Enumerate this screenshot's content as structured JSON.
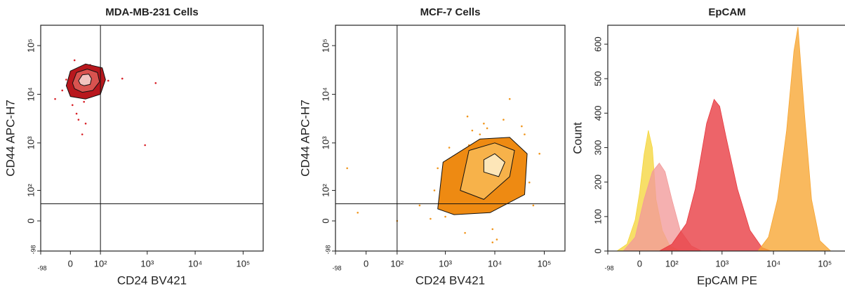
{
  "chart_data": [
    {
      "type": "scatter",
      "title": "MDA-MB-231 Cells",
      "x_label": "CD24 BV421",
      "y_label": "CD44 APC-H7",
      "xscale": "biexponential",
      "yscale": "biexponential",
      "xlim": [
        -98,
        262144
      ],
      "ylim": [
        -98,
        262144
      ],
      "xticks": [
        -98,
        0,
        {
          "value": 100,
          "label": "10²"
        },
        {
          "value": 1000,
          "label": "10³"
        },
        {
          "value": 10000,
          "label": "10⁴"
        },
        {
          "value": 100000,
          "label": "10⁵"
        }
      ],
      "yticks": [
        -98,
        0,
        {
          "value": 100,
          "label": "10²"
        },
        {
          "value": 1000,
          "label": "10³"
        },
        {
          "value": 10000,
          "label": "10⁴"
        },
        {
          "value": 100000,
          "label": "10⁵"
        }
      ],
      "gates": {
        "x": 100,
        "y": 45
      },
      "color": "#d9232a",
      "x": [
        -20,
        0,
        10,
        20,
        25,
        30,
        35,
        40,
        50,
        60,
        80,
        5,
        15,
        45,
        70,
        100,
        -40,
        30,
        20,
        55,
        150,
        300,
        1500,
        900,
        10,
        40,
        25,
        65,
        -10,
        35
      ],
      "y": [
        12000,
        25000,
        30000,
        18000,
        22000,
        15000,
        28000,
        35000,
        20000,
        12000,
        17000,
        6000,
        4000,
        9000,
        24000,
        14000,
        8000,
        1500,
        3000,
        40000,
        19000,
        21000,
        17000,
        900,
        50000,
        2500,
        11000,
        30000,
        20000,
        7000
      ],
      "contours": [
        {
          "color": "#b8171d",
          "x": [
            -10,
            0,
            40,
            110,
            130,
            100,
            40,
            0
          ],
          "y": [
            15000,
            30000,
            42000,
            35000,
            20000,
            10000,
            8000,
            9000
          ]
        },
        {
          "color": "#d9534f",
          "x": [
            5,
            15,
            45,
            85,
            95,
            65,
            30,
            10
          ],
          "y": [
            17000,
            28000,
            33000,
            28000,
            18000,
            12000,
            11000,
            13000
          ]
        },
        {
          "color": "#f2c4c0",
          "x": [
            20,
            30,
            50,
            60,
            55,
            35,
            25
          ],
          "y": [
            19000,
            25000,
            26000,
            21000,
            16000,
            15000,
            16000
          ]
        }
      ]
    },
    {
      "type": "scatter",
      "title": "MCF-7 Cells",
      "x_label": "CD24 BV421",
      "y_label": "CD44 APC-H7",
      "xscale": "biexponential",
      "yscale": "biexponential",
      "xlim": [
        -98,
        262144
      ],
      "ylim": [
        -98,
        262144
      ],
      "xticks": [
        -98,
        0,
        {
          "value": 100,
          "label": "10²"
        },
        {
          "value": 1000,
          "label": "10³"
        },
        {
          "value": 10000,
          "label": "10⁴"
        },
        {
          "value": 100000,
          "label": "10⁵"
        }
      ],
      "yticks": [
        -98,
        0,
        {
          "value": 100,
          "label": "10²"
        },
        {
          "value": 1000,
          "label": "10³"
        },
        {
          "value": 10000,
          "label": "10⁴"
        },
        {
          "value": 100000,
          "label": "10⁵"
        }
      ],
      "gates": {
        "x": 100,
        "y": 45
      },
      "color": "#f0961e",
      "x": [
        300,
        600,
        900,
        1500,
        2000,
        3000,
        4000,
        5000,
        7000,
        9000,
        12000,
        15000,
        20000,
        30000,
        50000,
        80000,
        2500,
        6000,
        11000,
        18000,
        40000,
        1000,
        500,
        8000,
        14000,
        25000,
        3500,
        60000,
        100,
        -20,
        20000,
        9000,
        4500,
        1200,
        700,
        35000,
        16000,
        7500,
        2800,
        -50
      ],
      "y": [
        40,
        100,
        200,
        60,
        500,
        900,
        30,
        1500,
        2000,
        -20,
        80,
        3000,
        1200,
        500,
        150,
        600,
        -30,
        2500,
        -50,
        700,
        1500,
        10,
        5,
        400,
        250,
        100,
        1800,
        40,
        0,
        20,
        8000,
        -60,
        1000,
        800,
        300,
        2200,
        50,
        1200,
        3500,
        300
      ],
      "contours": [
        {
          "color": "#ee8a12",
          "x": [
            700,
            1500,
            8000,
            40000,
            45000,
            20000,
            5000,
            900
          ],
          "y": [
            30,
            15,
            20,
            80,
            600,
            1300,
            1200,
            400
          ]
        },
        {
          "color": "#f7b24a",
          "x": [
            2000,
            6000,
            20000,
            25000,
            10000,
            3000
          ],
          "y": [
            100,
            60,
            200,
            700,
            1000,
            700
          ]
        },
        {
          "color": "#fde6b8",
          "x": [
            6000,
            12000,
            16000,
            10000,
            6000
          ],
          "y": [
            250,
            200,
            400,
            600,
            450
          ]
        }
      ]
    },
    {
      "type": "histogram",
      "title": "EpCAM",
      "x_label": "EpCAM PE",
      "y_label": "Count",
      "xscale": "biexponential",
      "xlim": [
        -98,
        262144
      ],
      "ylim": [
        0,
        655
      ],
      "xticks": [
        -98,
        0,
        {
          "value": 100,
          "label": "10²"
        },
        {
          "value": 1000,
          "label": "10³"
        },
        {
          "value": 10000,
          "label": "10⁴"
        },
        {
          "value": 100000,
          "label": "10⁵"
        }
      ],
      "yticks": [
        0,
        100,
        200,
        300,
        400,
        500,
        600
      ],
      "series": [
        {
          "color": "#f5d63d",
          "x": [
            -60,
            -30,
            -10,
            0,
            10,
            20,
            30,
            40,
            60,
            90,
            150
          ],
          "values": [
            0,
            20,
            90,
            170,
            280,
            350,
            300,
            150,
            60,
            15,
            0
          ]
        },
        {
          "color": "#f29a9a",
          "x": [
            -40,
            -10,
            10,
            30,
            50,
            70,
            100,
            150,
            250,
            400
          ],
          "values": [
            0,
            40,
            150,
            230,
            255,
            230,
            150,
            60,
            15,
            0
          ]
        },
        {
          "color": "#e8383f",
          "x": [
            50,
            100,
            200,
            300,
            500,
            700,
            900,
            1200,
            2000,
            3500,
            6000,
            9000
          ],
          "values": [
            0,
            20,
            80,
            180,
            370,
            440,
            420,
            330,
            180,
            60,
            10,
            0
          ]
        },
        {
          "color": "#f7a531",
          "x": [
            5000,
            8000,
            12000,
            18000,
            25000,
            30000,
            40000,
            55000,
            80000,
            130000
          ],
          "values": [
            0,
            40,
            150,
            350,
            580,
            650,
            400,
            150,
            30,
            0
          ]
        }
      ]
    }
  ]
}
